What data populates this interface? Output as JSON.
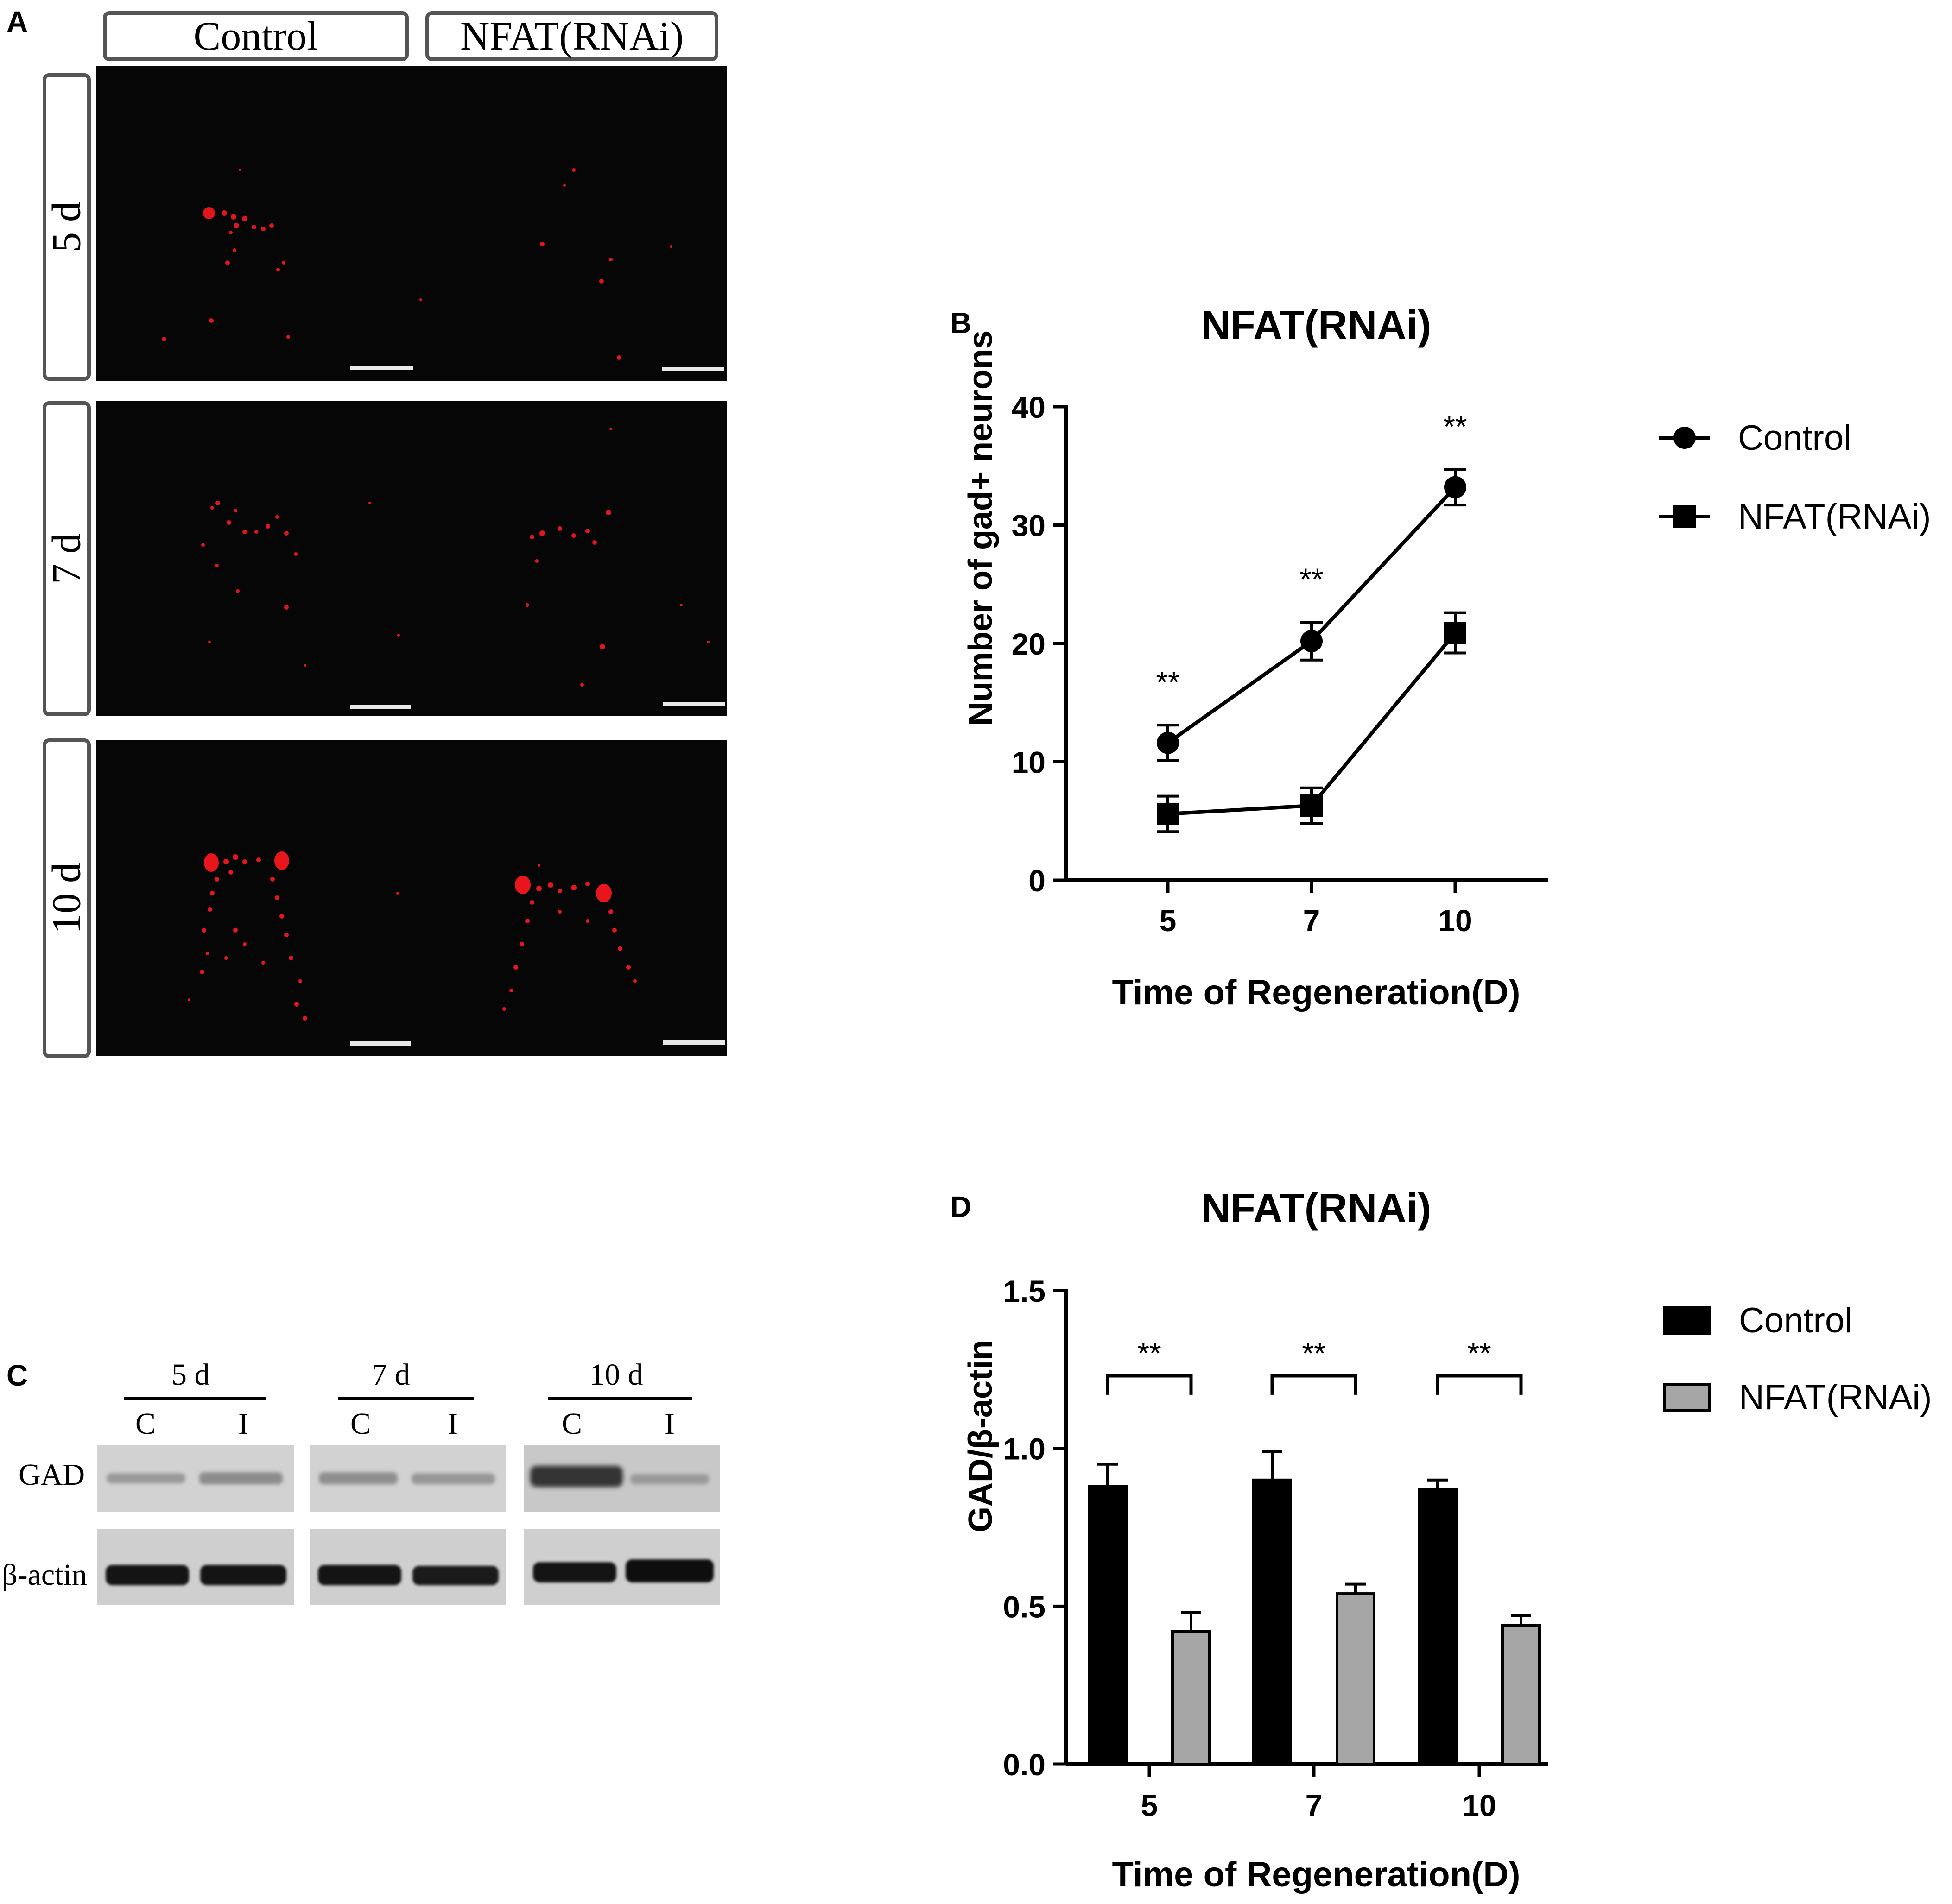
{
  "panel_a": {
    "letter": "A",
    "col_headers": [
      "Control",
      "NFAT(RNAi)"
    ],
    "row_labels": [
      "5 d",
      "7 d",
      "10 d"
    ]
  },
  "panel_b": {
    "letter": "B",
    "legend": [
      "Control",
      "NFAT(RNAi)"
    ]
  },
  "panel_c": {
    "letter": "C",
    "time_labels": [
      "5 d",
      "7 d",
      "10 d"
    ],
    "lane_labels": [
      "C",
      "I",
      "C",
      "I",
      "C",
      "I"
    ],
    "row_labels": [
      "GAD",
      "β-actin"
    ]
  },
  "panel_d": {
    "letter": "D",
    "legend": [
      "Control",
      "NFAT(RNAi)"
    ]
  },
  "chart_data": [
    {
      "type": "line",
      "title": "NFAT(RNAi)",
      "xlabel": "Time of Regeneration(D)",
      "ylabel": "Number of gad+ neurons",
      "categories": [
        "5",
        "7",
        "10"
      ],
      "ylim": [
        0,
        40
      ],
      "yticks": [
        "0",
        "10",
        "20",
        "30",
        "40"
      ],
      "series": [
        {
          "name": "Control",
          "values": [
            11.6,
            20.2,
            33.2
          ],
          "errors": [
            1.5,
            1.6,
            1.5
          ],
          "marker": "circle"
        },
        {
          "name": "NFAT(RNAi)",
          "values": [
            5.6,
            6.3,
            20.9
          ],
          "errors": [
            1.5,
            1.5,
            1.7
          ],
          "marker": "square"
        }
      ],
      "annotations": [
        "**",
        "**",
        "**"
      ],
      "legend_position": "right"
    },
    {
      "type": "bar",
      "title": "NFAT(RNAi)",
      "xlabel": "Time of Regeneration(D)",
      "ylabel": "GAD/β-actin",
      "categories": [
        "5",
        "7",
        "10"
      ],
      "ylim": [
        0,
        1.5
      ],
      "yticks": [
        "0.0",
        "0.5",
        "1.0",
        "1.5"
      ],
      "series": [
        {
          "name": "Control",
          "values": [
            0.88,
            0.9,
            0.87
          ],
          "errors": [
            0.07,
            0.09,
            0.03
          ],
          "color": "#000000"
        },
        {
          "name": "NFAT(RNAi)",
          "values": [
            0.42,
            0.54,
            0.44
          ],
          "errors": [
            0.06,
            0.03,
            0.03
          ],
          "color": "#a6a6a6"
        }
      ],
      "annotations": [
        "**",
        "**",
        "**"
      ],
      "legend_position": "right"
    }
  ]
}
